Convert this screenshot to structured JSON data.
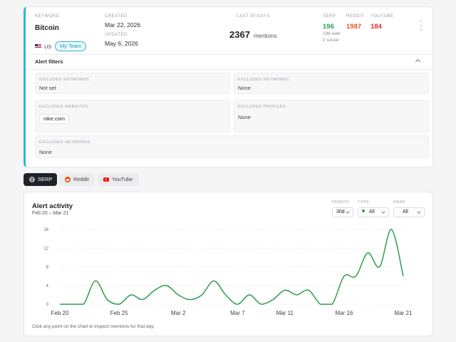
{
  "alert": {
    "keyword_label": "KEYWORD",
    "keyword": "Bitcoin",
    "country": "US",
    "team": "My Team",
    "created_label": "CREATED",
    "created": "Mar 22, 2026",
    "updated_label": "UPDATED",
    "updated": "May 6, 2026",
    "period_label": "LAST 30 DAYS",
    "mentions": "2367",
    "mentions_word": "mentions",
    "serp_label": "SERP",
    "serp_count": "196",
    "serp_web": "196 web",
    "serp_social": "0 social",
    "reddit_label": "REDDIT",
    "reddit_count": "1987",
    "youtube_label": "YOUTUBE",
    "youtube_count": "184",
    "colors": {
      "accent": "#2bb8d6",
      "serp": "#2e9e4f",
      "reddit": "#e0582b",
      "youtube": "#d93025"
    }
  },
  "filters": {
    "title": "Alert filters",
    "included_keywords_label": "INCLUDED KEYWORDS",
    "included_keywords": "Not set",
    "excluded_keywords_label": "EXCLUDED KEYWORDS",
    "excluded_keywords": "None",
    "excluded_websites_label": "EXCLUDED WEBSITES",
    "excluded_websites": [
      "nike.com"
    ],
    "excluded_profiles_label": "EXCLUDED PROFILES",
    "excluded_profiles": "None",
    "excluded_networks_label": "EXCLUDED NETWORKS",
    "excluded_networks": "None"
  },
  "tabs": [
    {
      "label": "SERP",
      "icon": "globe-icon",
      "active": true
    },
    {
      "label": "Reddit",
      "icon": "reddit-icon",
      "active": false
    },
    {
      "label": "YouTube",
      "icon": "youtube-icon",
      "active": false
    }
  ],
  "activity": {
    "title": "Alert activity",
    "range": "Feb 20 – Mar 21",
    "period_label": "PERIOD",
    "period": "30d",
    "type_label": "TYPE",
    "type": "All",
    "rank_label": "RANK",
    "rank": "All",
    "footnote": "Click any point on the chart to inspect mentions for that day."
  },
  "chart_data": {
    "type": "line",
    "x_labels": [
      "Feb 20",
      "Feb 25",
      "Mar 2",
      "Mar 7",
      "Mar 11",
      "Mar 16",
      "Mar 21"
    ],
    "x": [
      "Feb 20",
      "Feb 21",
      "Feb 22",
      "Feb 23",
      "Feb 24",
      "Feb 25",
      "Feb 26",
      "Feb 27",
      "Feb 28",
      "Mar 1",
      "Mar 2",
      "Mar 3",
      "Mar 4",
      "Mar 5",
      "Mar 6",
      "Mar 7",
      "Mar 8",
      "Mar 9",
      "Mar 10",
      "Mar 11",
      "Mar 12",
      "Mar 13",
      "Mar 14",
      "Mar 15",
      "Mar 16",
      "Mar 17",
      "Mar 18",
      "Mar 19",
      "Mar 20",
      "Mar 21"
    ],
    "values": [
      0,
      0,
      0,
      5,
      1,
      0,
      2,
      1,
      3,
      4,
      2,
      1,
      2,
      5,
      2,
      0,
      2,
      0,
      1,
      3,
      2,
      3,
      0,
      0,
      6,
      6,
      11,
      8,
      16,
      6
    ],
    "ylim": [
      0,
      16
    ],
    "y_ticks": [
      0,
      4,
      8,
      12,
      16
    ],
    "grid": true,
    "color": "#2e9e4f"
  }
}
